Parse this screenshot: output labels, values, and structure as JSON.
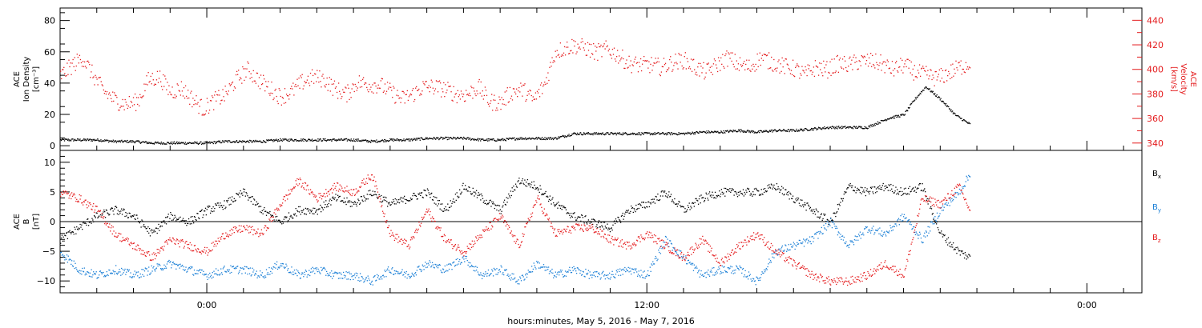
{
  "colors": {
    "black_series": "#000000",
    "red_series": "#e41a1c",
    "blue_series": "#1a7fd6"
  },
  "chart_data": [
    {
      "type": "scatter",
      "panel": "top",
      "x_axis": {
        "type": "time",
        "range_hours": [
          -4.0,
          25.5
        ],
        "ticks": [
          0,
          12,
          24
        ],
        "tick_labels": [
          "0:00",
          "12:00",
          "0:00"
        ],
        "xlabel": "hours:minutes, May  5, 2016 - May  7, 2016"
      },
      "left_axis": {
        "label_lines": [
          "ACE",
          "Ion Density",
          "[cm⁻³]"
        ],
        "ylim": [
          -3,
          88
        ],
        "ticks": [
          0,
          20,
          40,
          60,
          80
        ],
        "tick_labels": [
          "0",
          "20",
          "40",
          "60",
          "80"
        ]
      },
      "right_axis": {
        "label_lines": [
          "ACE",
          "Velocity",
          "[km/s]"
        ],
        "ylim": [
          334,
          450
        ],
        "ticks": [
          340,
          360,
          380,
          400,
          420,
          440
        ],
        "tick_labels": [
          "340",
          "360",
          "380",
          "400",
          "420",
          "440"
        ]
      },
      "series": [
        {
          "color": "black",
          "axis": "left",
          "x": [
            -4.0,
            -3.5,
            -3.0,
            -2.5,
            -2.0,
            -1.5,
            -1.0,
            -0.5,
            0.0,
            0.5,
            1.0,
            1.5,
            2.0,
            2.5,
            3.0,
            3.5,
            4.0,
            4.5,
            5.0,
            5.5,
            6.0,
            6.5,
            7.0,
            7.5,
            8.0,
            8.5,
            9.0,
            9.5,
            10.0,
            10.5,
            11.0,
            11.5,
            12.0,
            12.5,
            13.0,
            13.5,
            14.0,
            14.5,
            15.0,
            15.5,
            16.0,
            16.5,
            17.0,
            17.5,
            18.0,
            18.3,
            18.6,
            19.0,
            19.3,
            19.6,
            20.0,
            20.4,
            20.8
          ],
          "values": [
            4,
            4,
            4,
            3,
            3,
            2,
            2,
            2,
            2,
            3,
            3,
            3,
            4,
            4,
            4,
            4,
            4,
            3,
            4,
            4,
            5,
            5,
            5,
            4,
            4,
            5,
            5,
            5,
            8,
            8,
            8,
            8,
            8,
            8,
            8,
            9,
            9,
            10,
            9,
            10,
            10,
            11,
            12,
            12,
            12,
            15,
            18,
            20,
            30,
            38,
            30,
            20,
            14
          ]
        },
        {
          "color": "red",
          "axis": "right",
          "x": [
            -4.0,
            -3.7,
            -3.4,
            -3.1,
            -2.8,
            -2.5,
            -2.2,
            -1.9,
            -1.6,
            -1.3,
            -1.0,
            -0.7,
            -0.4,
            -0.1,
            0.2,
            0.5,
            0.8,
            1.1,
            1.4,
            1.7,
            2.0,
            2.3,
            2.6,
            2.9,
            3.2,
            3.5,
            3.8,
            4.1,
            4.4,
            4.7,
            5.0,
            5.3,
            5.6,
            5.9,
            6.2,
            6.5,
            6.8,
            7.1,
            7.4,
            7.7,
            8.0,
            8.3,
            8.6,
            8.9,
            9.2,
            9.5,
            10.0,
            10.3,
            10.6,
            10.9,
            11.2,
            11.5,
            11.8,
            12.1,
            12.4,
            12.7,
            13.0,
            13.3,
            13.6,
            13.9,
            14.2,
            14.5,
            14.8,
            15.1,
            15.4,
            15.7,
            16.0,
            16.3,
            16.6,
            16.9,
            17.2,
            17.5,
            17.8,
            18.1,
            18.4,
            18.7,
            19.0,
            19.3,
            19.6,
            19.9,
            20.2,
            20.5,
            20.8
          ],
          "values": [
            395,
            403,
            410,
            395,
            382,
            375,
            372,
            374,
            392,
            394,
            382,
            385,
            376,
            368,
            375,
            380,
            392,
            400,
            392,
            385,
            378,
            382,
            390,
            394,
            392,
            384,
            380,
            390,
            388,
            388,
            382,
            376,
            380,
            386,
            386,
            384,
            380,
            380,
            386,
            374,
            373,
            382,
            384,
            375,
            388,
            415,
            420,
            418,
            414,
            417,
            412,
            405,
            404,
            404,
            402,
            406,
            408,
            402,
            398,
            404,
            410,
            404,
            402,
            410,
            406,
            403,
            401,
            396,
            402,
            400,
            405,
            404,
            407,
            407,
            405,
            400,
            404,
            398,
            396,
            393,
            397,
            402,
            405
          ]
        }
      ]
    },
    {
      "type": "scatter",
      "panel": "bottom",
      "x_axis": {
        "type": "time",
        "range_hours": [
          -4.0,
          25.5
        ],
        "ticks": [
          0,
          12,
          24
        ],
        "tick_labels": [
          "0:00",
          "12:00",
          "0:00"
        ]
      },
      "left_axis": {
        "label_lines": [
          "ACE",
          "B",
          "[nT]"
        ],
        "ylim": [
          -12,
          12
        ],
        "ticks": [
          -10,
          -5,
          0,
          5,
          10
        ],
        "tick_labels": [
          "−10",
          "−5",
          "0",
          "5",
          "10"
        ],
        "zero_line": true
      },
      "series": [
        {
          "name": "Bx",
          "color": "black",
          "x": [
            -4.0,
            -3.5,
            -3.0,
            -2.5,
            -2.0,
            -1.5,
            -1.0,
            -0.5,
            0.0,
            0.5,
            1.0,
            1.5,
            2.0,
            2.5,
            3.0,
            3.5,
            4.0,
            4.5,
            5.0,
            5.5,
            6.0,
            6.5,
            7.0,
            7.5,
            8.0,
            8.5,
            9.0,
            9.5,
            10.0,
            10.5,
            11.0,
            11.5,
            12.0,
            12.5,
            13.0,
            13.5,
            14.0,
            14.5,
            15.0,
            15.5,
            16.0,
            16.5,
            17.0,
            17.5,
            18.0,
            18.5,
            19.0,
            19.5,
            20.0,
            20.5,
            20.8
          ],
          "values": [
            -3,
            -1,
            1,
            2,
            1,
            -2,
            1,
            0,
            2,
            3,
            5,
            2,
            0,
            2,
            2,
            4,
            3,
            5,
            3,
            4,
            5,
            2,
            6,
            4,
            2,
            7,
            6,
            3,
            1,
            0,
            -1,
            2,
            3,
            5,
            2,
            4,
            5,
            5,
            5,
            6,
            4,
            2,
            0,
            6,
            5,
            6,
            5,
            6,
            -2,
            -5,
            -6
          ]
        },
        {
          "name": "By",
          "color": "blue",
          "x": [
            -4.0,
            -3.5,
            -3.0,
            -2.5,
            -2.0,
            -1.5,
            -1.0,
            -0.5,
            0.0,
            0.5,
            1.0,
            1.5,
            2.0,
            2.5,
            3.0,
            3.5,
            4.0,
            4.5,
            5.0,
            5.5,
            6.0,
            6.5,
            7.0,
            7.5,
            8.0,
            8.5,
            9.0,
            9.5,
            10.0,
            10.5,
            11.0,
            11.5,
            12.0,
            12.5,
            13.0,
            13.5,
            14.0,
            14.5,
            15.0,
            15.5,
            16.0,
            16.5,
            17.0,
            17.5,
            18.0,
            18.5,
            19.0,
            19.5,
            20.0,
            20.5,
            20.8
          ],
          "values": [
            -5,
            -8,
            -9,
            -8,
            -9,
            -8,
            -7,
            -8,
            -9,
            -8,
            -8,
            -9,
            -7,
            -9,
            -8,
            -9,
            -9,
            -10,
            -8,
            -9,
            -7,
            -8,
            -6,
            -9,
            -8,
            -10,
            -7,
            -9,
            -8,
            -9,
            -9,
            -8,
            -9,
            -3,
            -6,
            -9,
            -8,
            -8,
            -10,
            -5,
            -4,
            -3,
            0,
            -4,
            -1,
            -2,
            1,
            -3,
            2,
            5,
            8
          ]
        },
        {
          "name": "Bz",
          "color": "red",
          "x": [
            -4.0,
            -3.5,
            -3.0,
            -2.5,
            -2.0,
            -1.5,
            -1.0,
            -0.5,
            0.0,
            0.5,
            1.0,
            1.5,
            2.0,
            2.5,
            3.0,
            3.5,
            4.0,
            4.5,
            5.0,
            5.5,
            6.0,
            6.5,
            7.0,
            7.5,
            8.0,
            8.5,
            9.0,
            9.5,
            10.0,
            10.5,
            11.0,
            11.5,
            12.0,
            12.5,
            13.0,
            13.5,
            14.0,
            14.5,
            15.0,
            15.5,
            16.0,
            16.5,
            17.0,
            17.5,
            18.0,
            18.5,
            19.0,
            19.5,
            20.0,
            20.5,
            20.8
          ],
          "values": [
            5,
            4,
            2,
            -2,
            -4,
            -6,
            -3,
            -4,
            -5,
            -2,
            -1,
            -2,
            3,
            7,
            4,
            6,
            5,
            8,
            -2,
            -4,
            2,
            -3,
            -5,
            -2,
            1,
            -4,
            4,
            -2,
            -1,
            -1,
            -3,
            -4,
            -2,
            -4,
            -6,
            -3,
            -7,
            -4,
            -2,
            -5,
            -7,
            -9,
            -10,
            -10,
            -9,
            -7,
            -9,
            4,
            3,
            6,
            2
          ]
        }
      ],
      "legend": {
        "placement": "right",
        "entries": [
          {
            "text": "Bx",
            "main": "B",
            "sub": "x",
            "color": "black"
          },
          {
            "text": "By",
            "main": "B",
            "sub": "y",
            "color": "blue"
          },
          {
            "text": "Bz",
            "main": "B",
            "sub": "z",
            "color": "red"
          }
        ]
      }
    }
  ]
}
